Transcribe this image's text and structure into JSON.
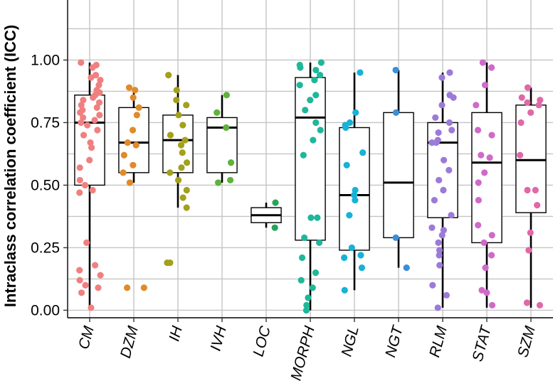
{
  "chart_data": {
    "type": "boxplot",
    "ylabel": "Intraclass correlation coefficient (ICC)",
    "xlabel": "",
    "ylim": [
      -0.03,
      1.24
    ],
    "yticks": [
      0.0,
      0.25,
      0.5,
      0.75,
      1.0
    ],
    "ytick_labels": [
      "0.00",
      "0.25",
      "0.50",
      "0.75",
      "1.00"
    ],
    "grid": true,
    "legend": "none",
    "categories": [
      "CM",
      "DZM",
      "IH",
      "IVH",
      "LOC",
      "MORPH",
      "NGL",
      "NGT",
      "RLM",
      "STAT",
      "SZM"
    ],
    "colors": [
      "#f08080",
      "#e08a2a",
      "#a3a01c",
      "#5fb23a",
      "#27a35a",
      "#1fb79a",
      "#17b2d6",
      "#3a8fd8",
      "#9c7ad8",
      "#d06ac9",
      "#e068a8"
    ],
    "boxes": [
      {
        "category": "CM",
        "whisker_low": 0.01,
        "q1": 0.5,
        "median": 0.75,
        "q3": 0.86,
        "whisker_high": 0.99
      },
      {
        "category": "DZM",
        "whisker_low": 0.51,
        "q1": 0.55,
        "median": 0.67,
        "q3": 0.81,
        "whisker_high": 0.89
      },
      {
        "category": "IH",
        "whisker_low": 0.41,
        "q1": 0.55,
        "median": 0.68,
        "q3": 0.78,
        "whisker_high": 0.94
      },
      {
        "category": "IVH",
        "whisker_low": 0.51,
        "q1": 0.55,
        "median": 0.73,
        "q3": 0.77,
        "whisker_high": 0.86
      },
      {
        "category": "LOC",
        "whisker_low": 0.33,
        "q1": 0.35,
        "median": 0.38,
        "q3": 0.41,
        "whisker_high": 0.43
      },
      {
        "category": "MORPH",
        "whisker_low": 0.0,
        "q1": 0.28,
        "median": 0.77,
        "q3": 0.93,
        "whisker_high": 0.99
      },
      {
        "category": "NGL",
        "whisker_low": 0.08,
        "q1": 0.24,
        "median": 0.46,
        "q3": 0.73,
        "whisker_high": 0.95
      },
      {
        "category": "NGT",
        "whisker_low": 0.17,
        "q1": 0.29,
        "median": 0.51,
        "q3": 0.79,
        "whisker_high": 0.96
      },
      {
        "category": "RLM",
        "whisker_low": 0.01,
        "q1": 0.37,
        "median": 0.67,
        "q3": 0.75,
        "whisker_high": 0.95
      },
      {
        "category": "STAT",
        "whisker_low": 0.01,
        "q1": 0.27,
        "median": 0.59,
        "q3": 0.79,
        "whisker_high": 0.99
      },
      {
        "category": "SZM",
        "whisker_low": 0.01,
        "q1": 0.39,
        "median": 0.6,
        "q3": 0.82,
        "whisker_high": 0.89
      }
    ],
    "points": [
      {
        "category": "CM",
        "values": [
          0.99,
          0.98,
          0.97,
          0.94,
          0.93,
          0.92,
          0.9,
          0.88,
          0.87,
          0.86,
          0.85,
          0.84,
          0.83,
          0.82,
          0.81,
          0.8,
          0.79,
          0.78,
          0.77,
          0.76,
          0.75,
          0.74,
          0.72,
          0.7,
          0.67,
          0.65,
          0.6,
          0.57,
          0.52,
          0.5,
          0.48,
          0.47,
          0.27,
          0.18,
          0.16,
          0.14,
          0.12,
          0.1,
          0.09,
          0.07,
          0.01
        ]
      },
      {
        "category": "DZM",
        "values": [
          0.89,
          0.88,
          0.85,
          0.81,
          0.78,
          0.72,
          0.67,
          0.66,
          0.62,
          0.58,
          0.55,
          0.51,
          0.09,
          0.09
        ]
      },
      {
        "category": "IH",
        "values": [
          0.94,
          0.88,
          0.84,
          0.82,
          0.78,
          0.74,
          0.7,
          0.68,
          0.66,
          0.63,
          0.59,
          0.57,
          0.55,
          0.52,
          0.48,
          0.45,
          0.41,
          0.19,
          0.19
        ]
      },
      {
        "category": "IVH",
        "values": [
          0.86,
          0.79,
          0.73,
          0.59,
          0.52,
          0.51
        ]
      },
      {
        "category": "LOC",
        "values": [
          0.43,
          0.33
        ]
      },
      {
        "category": "MORPH",
        "values": [
          0.99,
          0.98,
          0.97,
          0.96,
          0.94,
          0.92,
          0.9,
          0.86,
          0.84,
          0.8,
          0.75,
          0.72,
          0.68,
          0.62,
          0.37,
          0.37,
          0.29,
          0.27,
          0.21,
          0.15,
          0.12,
          0.09,
          0.05,
          0.02,
          0.0
        ]
      },
      {
        "category": "NGL",
        "values": [
          0.95,
          0.79,
          0.75,
          0.74,
          0.73,
          0.63,
          0.58,
          0.48,
          0.46,
          0.44,
          0.38,
          0.25,
          0.22,
          0.21,
          0.17,
          0.08
        ]
      },
      {
        "category": "NGT",
        "values": [
          0.96,
          0.79,
          0.29,
          0.17
        ]
      },
      {
        "category": "RLM",
        "values": [
          0.95,
          0.93,
          0.86,
          0.85,
          0.82,
          0.77,
          0.75,
          0.72,
          0.71,
          0.68,
          0.67,
          0.67,
          0.6,
          0.56,
          0.52,
          0.48,
          0.44,
          0.38,
          0.33,
          0.32,
          0.3,
          0.27,
          0.24,
          0.22,
          0.18,
          0.1,
          0.06,
          0.01
        ]
      },
      {
        "category": "STAT",
        "values": [
          0.99,
          0.97,
          0.9,
          0.82,
          0.72,
          0.7,
          0.62,
          0.61,
          0.55,
          0.51,
          0.44,
          0.34,
          0.3,
          0.27,
          0.22,
          0.17,
          0.08,
          0.07,
          0.02
        ]
      },
      {
        "category": "SZM",
        "values": [
          0.89,
          0.85,
          0.84,
          0.83,
          0.82,
          0.79,
          0.75,
          0.62,
          0.48,
          0.48,
          0.42,
          0.31,
          0.24,
          0.03,
          0.02
        ]
      }
    ]
  }
}
